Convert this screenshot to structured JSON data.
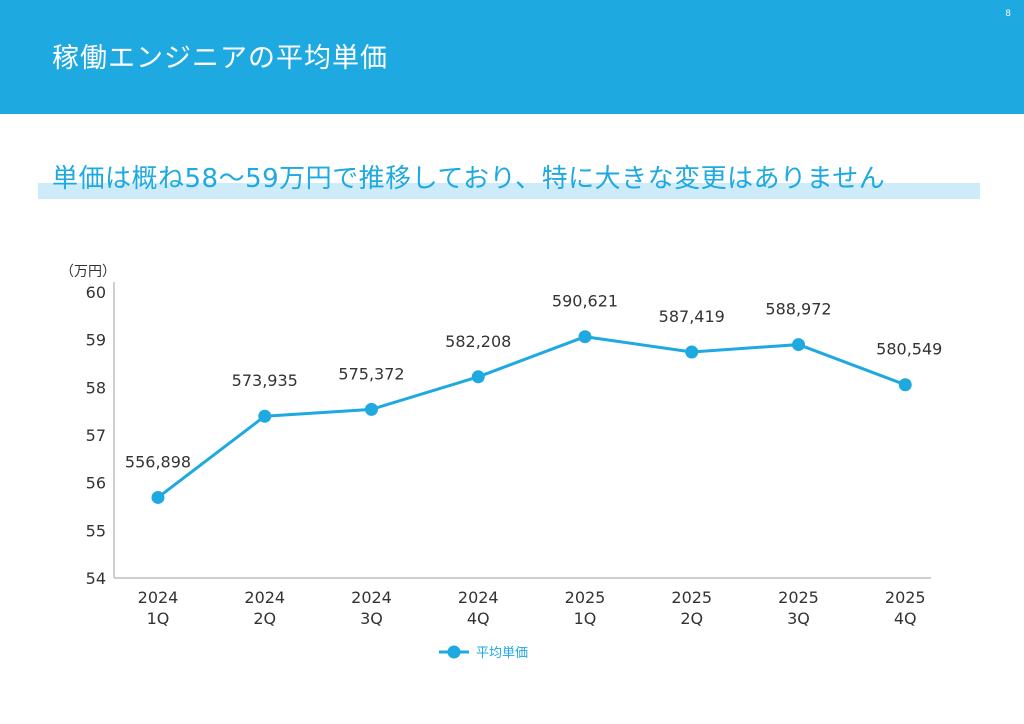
{
  "page": {
    "title": "稼働エンジニアの平均単価",
    "page_number": "8",
    "headline": "単価は概ね58〜59万円で推移しており、特に大きな変更はありません"
  },
  "colors": {
    "header": "#1ea9e1",
    "series": "#1ea9e1",
    "headline_band": "#cdebf8"
  },
  "chart_data": {
    "type": "line",
    "title": "",
    "ylabel": "（万円）",
    "xlabel": "",
    "ylim": [
      54,
      60
    ],
    "yticks": [
      54,
      55,
      56,
      57,
      58,
      59,
      60
    ],
    "grid": false,
    "legend_position": "bottom",
    "categories": [
      [
        "2024",
        "1Q"
      ],
      [
        "2024",
        "2Q"
      ],
      [
        "2024",
        "3Q"
      ],
      [
        "2024",
        "4Q"
      ],
      [
        "2025",
        "1Q"
      ],
      [
        "2025",
        "2Q"
      ],
      [
        "2025",
        "3Q"
      ],
      [
        "2025",
        "4Q"
      ]
    ],
    "series": [
      {
        "name": "平均単価",
        "values": [
          55.6898,
          57.3935,
          57.5372,
          58.2208,
          59.0621,
          58.7419,
          58.8972,
          58.0549
        ],
        "labels": [
          "556,898",
          "573,935",
          "575,372",
          "582,208",
          "590,621",
          "587,419",
          "588,972",
          "580,549"
        ]
      }
    ]
  }
}
